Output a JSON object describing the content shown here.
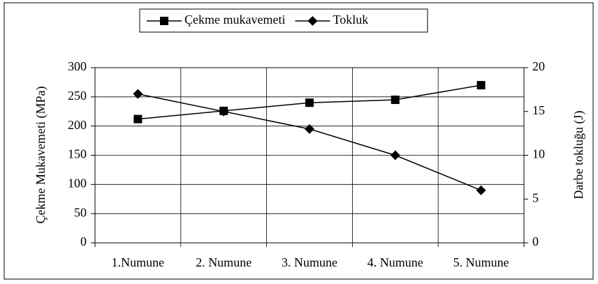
{
  "chart_data": {
    "type": "line",
    "categories": [
      "1.Numune",
      "2. Numune",
      "3. Numune",
      "4. Numune",
      "5. Numune"
    ],
    "series": [
      {
        "name": "Çekme mukavemeti",
        "color": "#000000",
        "marker": "square",
        "values": [
          212,
          226,
          240,
          245,
          270
        ]
      },
      {
        "name": "Tokluk",
        "color": "#000000",
        "marker": "diamond",
        "axis": "y2",
        "values": [
          17,
          15,
          13,
          10,
          6
        ]
      }
    ],
    "ylabel": "Çekme Mukavemeti (MPa)",
    "y2label": "Darbe tokluğu (J)",
    "ylim": [
      0,
      300
    ],
    "yticks": [
      0,
      50,
      100,
      150,
      200,
      250,
      300
    ],
    "y2lim": [
      0,
      20
    ],
    "y2ticks": [
      0,
      5,
      10,
      15,
      20
    ],
    "grid": true,
    "legend": "top"
  }
}
